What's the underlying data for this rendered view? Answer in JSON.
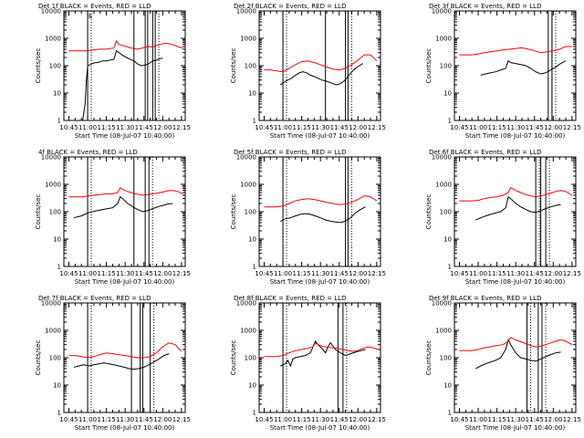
{
  "figure": {
    "start_label": "Start Time (08-Jul-07 10:40:00)",
    "ylabel": "Counts/sec",
    "x_ticks": [
      "10:45",
      "11:00",
      "11:15",
      "11:30",
      "11:45",
      "12:00",
      "12:15"
    ],
    "x_tick_minutes": [
      45,
      60,
      75,
      90,
      105,
      120,
      135
    ],
    "y_ticks": [
      "1",
      "10",
      "100",
      "1000",
      "10000"
    ],
    "y_tick_values": [
      1,
      10,
      100,
      1000,
      10000
    ],
    "xlim_minutes": [
      41,
      138
    ],
    "ylim": [
      1,
      10000
    ],
    "y_scale": "log",
    "colors": {
      "events": "#000000",
      "lld": "#ff0000",
      "axes": "#000000",
      "background": "#ffffff"
    }
  },
  "chart_data": [
    {
      "type": "line",
      "title": "Det 1f BLACK = Events, RED = LLD",
      "xlabel": "Start Time (08-Jul-07 10:40:00)",
      "ylabel": "Counts/sec",
      "markers": [
        {
          "x": 60,
          "label": "E"
        },
        {
          "x": 97,
          "label": ""
        },
        {
          "x": 106,
          "label": ""
        },
        {
          "x": 108,
          "label": ""
        },
        {
          "x": 112,
          "label": ""
        },
        {
          "x": 114,
          "label": ""
        }
      ],
      "series": [
        {
          "name": "Events",
          "color": "#000000",
          "x": [
            54,
            56,
            58,
            59,
            60,
            62,
            64,
            66,
            68,
            70,
            72,
            75,
            78,
            81,
            83,
            85,
            88,
            91,
            94,
            97,
            100,
            103,
            106,
            109,
            112,
            115,
            118,
            120
          ],
          "y": [
            1,
            1,
            4,
            30,
            100,
            110,
            120,
            130,
            130,
            140,
            150,
            150,
            160,
            170,
            350,
            300,
            240,
            200,
            170,
            150,
            115,
            100,
            105,
            120,
            150,
            160,
            180,
            190
          ]
        },
        {
          "name": "LLD",
          "color": "#ff0000",
          "x": [
            45,
            50,
            55,
            60,
            65,
            70,
            75,
            78,
            81,
            83,
            85,
            88,
            91,
            94,
            97,
            100,
            103,
            106,
            109,
            112,
            115,
            118,
            121,
            124,
            127,
            130,
            133,
            136
          ],
          "y": [
            350,
            350,
            350,
            350,
            380,
            400,
            400,
            420,
            440,
            800,
            600,
            550,
            500,
            450,
            420,
            400,
            430,
            480,
            500,
            480,
            550,
            600,
            650,
            650,
            600,
            550,
            480,
            450
          ]
        }
      ]
    },
    {
      "type": "line",
      "title": "Det 2f BLACK = Events, RED = LLD",
      "xlabel": "Start Time (08-Jul-07 10:40:00)",
      "ylabel": "Counts/sec",
      "markers": [
        {
          "x": 60,
          "label": ""
        },
        {
          "x": 94,
          "label": ""
        },
        {
          "x": 110,
          "label": ""
        },
        {
          "x": 112,
          "label": ""
        }
      ],
      "series": [
        {
          "name": "Events",
          "color": "#000000",
          "x": [
            58,
            61,
            64,
            67,
            70,
            73,
            76,
            79,
            82,
            85,
            88,
            91,
            94,
            97,
            100,
            103,
            106,
            109,
            112,
            115,
            118,
            121,
            124
          ],
          "y": [
            20,
            25,
            30,
            35,
            45,
            55,
            60,
            55,
            45,
            40,
            35,
            30,
            28,
            25,
            22,
            20,
            22,
            28,
            40,
            60,
            80,
            100,
            120
          ]
        },
        {
          "name": "LLD",
          "color": "#ff0000",
          "x": [
            45,
            50,
            55,
            60,
            65,
            70,
            75,
            80,
            85,
            90,
            95,
            100,
            105,
            110,
            115,
            120,
            125,
            130,
            135
          ],
          "y": [
            70,
            70,
            65,
            60,
            80,
            110,
            140,
            150,
            130,
            110,
            90,
            75,
            70,
            80,
            110,
            160,
            250,
            250,
            150
          ]
        }
      ]
    },
    {
      "type": "line",
      "title": "Det 3f BLACK = Events, RED = LLD",
      "xlabel": "Start Time (08-Jul-07 10:40:00)",
      "ylabel": "Counts/sec",
      "markers": [
        {
          "x": 116,
          "label": ""
        },
        {
          "x": 119,
          "label": ""
        }
      ],
      "series": [
        {
          "name": "Events",
          "color": "#000000",
          "x": [
            62,
            66,
            70,
            74,
            78,
            82,
            84,
            86,
            90,
            94,
            98,
            102,
            106,
            110,
            114,
            118,
            122,
            126,
            130
          ],
          "y": [
            45,
            50,
            55,
            60,
            70,
            80,
            150,
            130,
            120,
            110,
            100,
            80,
            60,
            50,
            55,
            70,
            90,
            120,
            150
          ]
        },
        {
          "name": "LLD",
          "color": "#ff0000",
          "x": [
            45,
            50,
            55,
            60,
            65,
            70,
            75,
            80,
            85,
            90,
            95,
            100,
            105,
            110,
            115,
            120,
            125,
            130,
            135
          ],
          "y": [
            250,
            250,
            250,
            270,
            300,
            320,
            350,
            380,
            400,
            420,
            450,
            400,
            350,
            300,
            320,
            350,
            400,
            500,
            500
          ]
        }
      ]
    },
    {
      "type": "line",
      "title": "4f BLACK = Events, RED = LLD",
      "xlabel": "Start Time (08-Jul-07 10:40:00)",
      "ylabel": "Counts/sec",
      "markers": [
        {
          "x": 60,
          "label": ""
        },
        {
          "x": 97,
          "label": ""
        },
        {
          "x": 106,
          "label": ""
        },
        {
          "x": 109,
          "label": ""
        }
      ],
      "series": [
        {
          "name": "Events",
          "color": "#000000",
          "x": [
            49,
            52,
            55,
            60,
            64,
            68,
            72,
            76,
            80,
            84,
            86,
            88,
            92,
            96,
            100,
            104,
            108,
            112,
            116,
            120,
            124,
            128
          ],
          "y": [
            60,
            65,
            70,
            90,
            100,
            110,
            120,
            130,
            140,
            200,
            350,
            300,
            200,
            150,
            120,
            100,
            110,
            130,
            150,
            170,
            190,
            200
          ]
        },
        {
          "name": "LLD",
          "color": "#ff0000",
          "x": [
            45,
            50,
            55,
            60,
            65,
            70,
            75,
            80,
            84,
            86,
            88,
            92,
            96,
            100,
            104,
            108,
            112,
            116,
            120,
            124,
            128,
            132,
            136
          ],
          "y": [
            350,
            350,
            350,
            370,
            400,
            420,
            450,
            450,
            500,
            750,
            650,
            550,
            480,
            430,
            400,
            420,
            450,
            480,
            520,
            580,
            600,
            550,
            450
          ]
        }
      ]
    },
    {
      "type": "line",
      "title": "Det 5f BLACK = Events, RED = LLD",
      "xlabel": "Start Time (08-Jul-07 10:40:00)",
      "ylabel": "Counts/sec",
      "markers": [
        {
          "x": 60,
          "label": ""
        },
        {
          "x": 110,
          "label": ""
        },
        {
          "x": 112,
          "label": ""
        }
      ],
      "series": [
        {
          "name": "Events",
          "color": "#000000",
          "x": [
            58,
            62,
            66,
            70,
            74,
            78,
            82,
            86,
            90,
            94,
            98,
            102,
            106,
            110,
            114,
            118,
            122,
            126
          ],
          "y": [
            45,
            55,
            60,
            70,
            80,
            85,
            80,
            70,
            60,
            50,
            45,
            42,
            40,
            45,
            60,
            90,
            120,
            150
          ]
        },
        {
          "name": "LLD",
          "color": "#ff0000",
          "x": [
            45,
            50,
            55,
            60,
            65,
            70,
            75,
            80,
            85,
            90,
            95,
            100,
            105,
            110,
            115,
            120,
            125,
            130,
            135
          ],
          "y": [
            150,
            150,
            150,
            160,
            200,
            250,
            280,
            300,
            280,
            250,
            220,
            200,
            180,
            190,
            220,
            280,
            380,
            350,
            250
          ]
        }
      ]
    },
    {
      "type": "line",
      "title": "Det 6f BLACK = Events, RED = LLD",
      "xlabel": "Start Time (08-Jul-07 10:40:00)",
      "ylabel": "Counts/sec",
      "markers": [
        {
          "x": 106,
          "label": ""
        },
        {
          "x": 110,
          "label": ""
        },
        {
          "x": 114,
          "label": ""
        }
      ],
      "series": [
        {
          "name": "Events",
          "color": "#000000",
          "x": [
            58,
            62,
            66,
            70,
            74,
            78,
            82,
            84,
            86,
            90,
            94,
            98,
            102,
            106,
            110,
            114,
            118,
            122,
            126
          ],
          "y": [
            50,
            60,
            70,
            80,
            90,
            100,
            140,
            350,
            300,
            200,
            150,
            120,
            100,
            95,
            110,
            130,
            150,
            170,
            180
          ]
        },
        {
          "name": "LLD",
          "color": "#ff0000",
          "x": [
            45,
            50,
            55,
            60,
            65,
            70,
            75,
            80,
            84,
            86,
            90,
            94,
            98,
            102,
            106,
            110,
            114,
            118,
            122,
            126,
            130,
            135
          ],
          "y": [
            250,
            250,
            250,
            260,
            300,
            330,
            350,
            400,
            500,
            750,
            600,
            500,
            420,
            380,
            350,
            380,
            420,
            480,
            550,
            600,
            550,
            400
          ]
        }
      ]
    },
    {
      "type": "line",
      "title": "Det 7f BLACK = Events, RED = LLD",
      "xlabel": "Start Time (08-Jul-07 10:40:00)",
      "ylabel": "Counts/sec",
      "markers": [
        {
          "x": 60,
          "label": ""
        },
        {
          "x": 95,
          "label": ""
        },
        {
          "x": 102,
          "label": ""
        },
        {
          "x": 104,
          "label": ""
        },
        {
          "x": 110,
          "label": ""
        }
      ],
      "series": [
        {
          "name": "Events",
          "color": "#000000",
          "x": [
            49,
            53,
            57,
            61,
            65,
            69,
            73,
            77,
            81,
            85,
            89,
            93,
            97,
            101,
            105,
            109,
            113,
            117,
            121,
            125
          ],
          "y": [
            45,
            50,
            55,
            50,
            55,
            60,
            65,
            60,
            55,
            50,
            45,
            40,
            38,
            40,
            45,
            55,
            70,
            90,
            120,
            140
          ]
        },
        {
          "name": "LLD",
          "color": "#ff0000",
          "x": [
            45,
            50,
            55,
            60,
            65,
            70,
            75,
            80,
            85,
            90,
            95,
            100,
            105,
            110,
            115,
            120,
            125,
            130,
            135
          ],
          "y": [
            120,
            120,
            110,
            100,
            110,
            130,
            150,
            140,
            130,
            120,
            110,
            100,
            100,
            110,
            150,
            250,
            350,
            300,
            170
          ]
        }
      ]
    },
    {
      "type": "line",
      "title": "Det 8f BLACK = Events, RED = LLD",
      "xlabel": "Start Time (08-Jul-07 10:40:00)",
      "ylabel": "Counts/sec",
      "markers": [
        {
          "x": 60,
          "label": ""
        },
        {
          "x": 104,
          "label": ""
        },
        {
          "x": 108,
          "label": ""
        }
      ],
      "series": [
        {
          "name": "Events",
          "color": "#000000",
          "x": [
            58,
            62,
            64,
            66,
            68,
            70,
            74,
            78,
            82,
            84,
            86,
            88,
            92,
            94,
            96,
            98,
            102,
            106,
            110,
            114,
            118,
            122,
            126
          ],
          "y": [
            50,
            60,
            80,
            50,
            90,
            100,
            110,
            120,
            150,
            250,
            400,
            300,
            200,
            150,
            250,
            350,
            200,
            150,
            120,
            140,
            160,
            180,
            200
          ]
        },
        {
          "name": "LLD",
          "color": "#ff0000",
          "x": [
            45,
            50,
            55,
            60,
            65,
            70,
            75,
            80,
            84,
            86,
            88,
            92,
            96,
            100,
            104,
            108,
            112,
            116,
            120,
            124,
            128,
            132,
            136
          ],
          "y": [
            110,
            110,
            110,
            120,
            150,
            180,
            200,
            220,
            250,
            350,
            300,
            260,
            240,
            230,
            220,
            200,
            180,
            170,
            180,
            220,
            250,
            230,
            200
          ]
        }
      ]
    },
    {
      "type": "line",
      "title": "Det 9f BLACK = Events, RED = LLD",
      "xlabel": "Start Time (08-Jul-07 10:40:00)",
      "ylabel": "Counts/sec",
      "markers": [
        {
          "x": 99,
          "label": ""
        },
        {
          "x": 108,
          "label": ""
        },
        {
          "x": 111,
          "label": ""
        }
      ],
      "series": [
        {
          "name": "Events",
          "color": "#000000",
          "x": [
            58,
            62,
            66,
            70,
            74,
            78,
            82,
            84,
            86,
            90,
            94,
            98,
            102,
            106,
            110,
            114,
            118,
            122,
            126
          ],
          "y": [
            40,
            50,
            60,
            70,
            80,
            100,
            200,
            450,
            300,
            150,
            100,
            90,
            80,
            75,
            90,
            110,
            130,
            150,
            160
          ]
        },
        {
          "name": "LLD",
          "color": "#ff0000",
          "x": [
            45,
            50,
            55,
            60,
            65,
            70,
            75,
            80,
            84,
            86,
            90,
            94,
            98,
            102,
            106,
            110,
            114,
            118,
            122,
            126,
            130,
            135
          ],
          "y": [
            180,
            180,
            180,
            200,
            230,
            250,
            280,
            300,
            400,
            550,
            450,
            380,
            330,
            280,
            250,
            260,
            300,
            350,
            400,
            450,
            400,
            300
          ]
        }
      ]
    }
  ]
}
